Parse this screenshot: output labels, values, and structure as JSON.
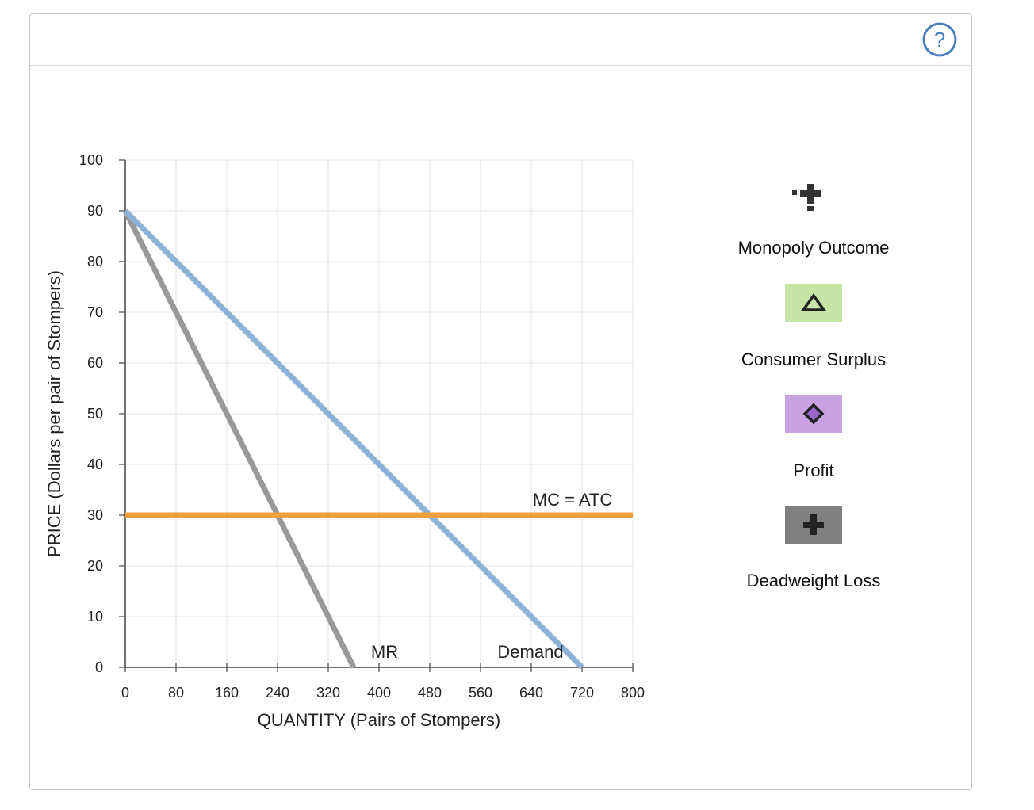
{
  "help": {
    "label": "?"
  },
  "chart_data": {
    "type": "line",
    "xlabel": "QUANTITY (Pairs of Stompers)",
    "ylabel": "PRICE (Dollars per pair of Stompers)",
    "xlim": [
      0,
      800
    ],
    "ylim": [
      0,
      100
    ],
    "xticks": [
      0,
      80,
      160,
      240,
      320,
      400,
      480,
      560,
      640,
      720,
      800
    ],
    "yticks": [
      0,
      10,
      20,
      30,
      40,
      50,
      60,
      70,
      80,
      90,
      100
    ],
    "grid": true,
    "series": [
      {
        "name": "Demand",
        "label": "Demand",
        "color": "#8eb1d9",
        "points": [
          [
            0,
            90
          ],
          [
            720,
            0
          ]
        ]
      },
      {
        "name": "MR",
        "label": "MR",
        "color": "#999999",
        "points": [
          [
            0,
            90
          ],
          [
            360,
            0
          ]
        ]
      },
      {
        "name": "MC = ATC",
        "label": "MC = ATC",
        "color": "#f2a03d",
        "points": [
          [
            0,
            30
          ],
          [
            800,
            30
          ]
        ]
      }
    ]
  },
  "legend": {
    "items": [
      {
        "label": "Monopoly Outcome",
        "icon": "plus-dots-icon",
        "swatch_color": ""
      },
      {
        "label": "Consumer Surplus",
        "icon": "triangle-icon",
        "swatch_color": "#c5e4a6"
      },
      {
        "label": "Profit",
        "icon": "diamond-icon",
        "swatch_color": "#c9a2e4"
      },
      {
        "label": "Deadweight Loss",
        "icon": "plus-icon",
        "swatch_color": "#808080"
      }
    ]
  }
}
